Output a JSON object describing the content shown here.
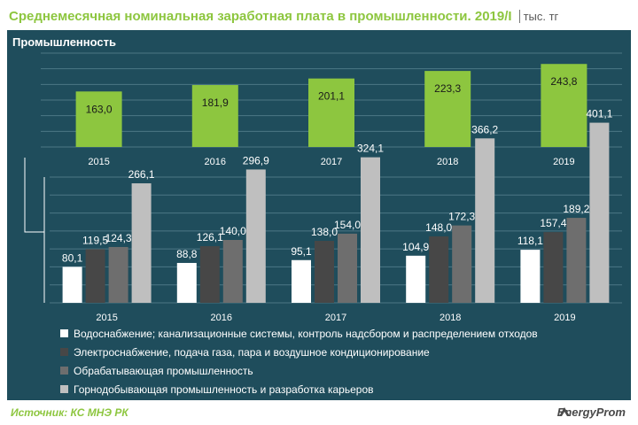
{
  "header": {
    "title": "Среднемесячная номинальная заработная плата в промышленности. 2019/I",
    "unit": "тыс. тг"
  },
  "footer": {
    "source": "Источник: КС МНЭ РК",
    "brand": "EnergyProm"
  },
  "colors": {
    "panel_bg": "#1f4d5c",
    "green": "#8dc63f",
    "series": [
      "#ffffff",
      "#474747",
      "#6e6e6e",
      "#bfbfbf"
    ]
  },
  "chart_data": [
    {
      "type": "bar",
      "title": "Промышленность",
      "categories": [
        "2015",
        "2016",
        "2017",
        "2018",
        "2019"
      ],
      "values": [
        163.0,
        181.9,
        201.1,
        223.3,
        243.8
      ],
      "value_labels": [
        "163,0",
        "181,9",
        "201,1",
        "223,3",
        "243,8"
      ],
      "grid": true
    },
    {
      "type": "bar",
      "categories": [
        "2015",
        "2016",
        "2017",
        "2018",
        "2019"
      ],
      "series": [
        {
          "name": "Водоснабжение; канализационные системы, контроль надсбором и распределением отходов",
          "values": [
            80.1,
            88.8,
            95.1,
            104.9,
            118.1
          ],
          "labels": [
            "80,1",
            "88,8",
            "95,1",
            "104,9",
            "118,1"
          ]
        },
        {
          "name": "Электроснабжение, подача газа, пара и воздушное кондиционирование",
          "values": [
            119.5,
            126.1,
            138.0,
            148.0,
            157.4
          ],
          "labels": [
            "119,5",
            "126,1",
            "138,0",
            "148,0",
            "157,4"
          ]
        },
        {
          "name": "Обрабатывающая промышленность",
          "values": [
            124.3,
            140.0,
            154.0,
            172.3,
            189.2
          ],
          "labels": [
            "124,3",
            "140,0",
            "154,0",
            "172,3",
            "189,2"
          ]
        },
        {
          "name": "Горнодобывающая промышленность и разработка карьеров",
          "values": [
            266.1,
            296.9,
            324.1,
            366.2,
            401.1
          ],
          "labels": [
            "266,1",
            "296,9",
            "324,1",
            "366,2",
            "401,1"
          ]
        }
      ],
      "legend_position": "bottom",
      "grid": true
    }
  ]
}
